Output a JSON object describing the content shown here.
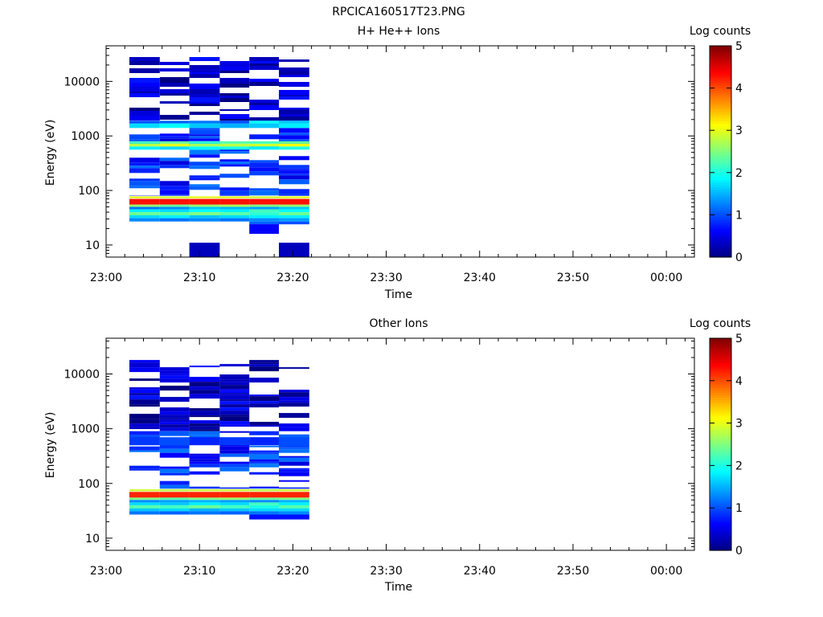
{
  "figure_title": "RPCICA160517T23.PNG",
  "colorbar": {
    "label": "Log counts",
    "ticks": [
      "0",
      "1",
      "2",
      "3",
      "4",
      "5"
    ],
    "range": [
      0,
      5
    ],
    "colormap": "jet"
  },
  "x_axis": {
    "label": "Time",
    "ticks": [
      "23:00",
      "23:10",
      "23:20",
      "23:30",
      "23:40",
      "23:50",
      "00:00"
    ],
    "range": [
      "23:00",
      "00:03"
    ]
  },
  "y_axis": {
    "label": "Energy (eV)",
    "ticks": [
      "10",
      "100",
      "1000",
      "10000"
    ],
    "scale": "log",
    "range": [
      6,
      45000
    ]
  },
  "chart_data": [
    {
      "type": "heatmap",
      "title": "H+ He++ Ions",
      "xlabel": "Time",
      "ylabel": "Energy (eV)",
      "colorbar_label": "Log counts",
      "yscale": "log",
      "time_bins": [
        {
          "start": "23:02:30",
          "end": "23:05:45"
        },
        {
          "start": "23:05:45",
          "end": "23:08:55"
        },
        {
          "start": "23:08:55",
          "end": "23:12:10"
        },
        {
          "start": "23:12:10",
          "end": "23:15:20"
        },
        {
          "start": "23:15:20",
          "end": "23:18:30"
        },
        {
          "start": "23:18:30",
          "end": "23:21:45"
        }
      ],
      "bands": [
        {
          "e_lo": 55,
          "e_hi": 70,
          "log_counts": [
            4.3,
            4.3,
            4.3,
            4.3,
            4.3,
            4.3
          ]
        },
        {
          "e_lo": 72,
          "e_hi": 78,
          "log_counts": [
            3.0,
            2.9,
            3.0,
            3.0,
            2.9,
            3.0
          ]
        },
        {
          "e_lo": 50,
          "e_hi": 55,
          "log_counts": [
            2.6,
            2.4,
            2.6,
            2.7,
            2.5,
            2.6
          ]
        },
        {
          "e_lo": 45,
          "e_hi": 50,
          "log_counts": [
            1.2,
            1.3,
            1.6,
            1.5,
            1.4,
            1.6
          ]
        },
        {
          "e_lo": 40,
          "e_hi": 45,
          "log_counts": [
            1.8,
            1.7,
            1.9,
            1.8,
            2.2,
            1.9
          ]
        },
        {
          "e_lo": 35,
          "e_hi": 40,
          "log_counts": [
            2.4,
            2.3,
            2.5,
            2.3,
            2.1,
            2.4
          ]
        },
        {
          "e_lo": 31,
          "e_hi": 35,
          "log_counts": [
            1.7,
            1.8,
            1.6,
            1.7,
            1.8,
            1.8
          ]
        },
        {
          "e_lo": 27,
          "e_hi": 31,
          "log_counts": [
            1.3,
            1.2,
            1.3,
            1.2,
            1.3,
            1.4
          ]
        },
        {
          "e_lo": 24,
          "e_hi": 27,
          "log_counts": [
            null,
            null,
            null,
            null,
            1.1,
            1.0
          ]
        },
        {
          "e_lo": 16,
          "e_hi": 24,
          "log_counts": [
            null,
            null,
            null,
            null,
            0.6,
            null
          ]
        },
        {
          "e_lo": 6,
          "e_hi": 11,
          "log_counts": [
            null,
            null,
            0.3,
            null,
            null,
            0.3
          ]
        },
        {
          "e_lo": 640,
          "e_hi": 720,
          "log_counts": [
            2.8,
            3.0,
            2.7,
            2.8,
            2.9,
            3.1
          ]
        },
        {
          "e_lo": 720,
          "e_hi": 800,
          "log_counts": [
            2.2,
            2.4,
            2.1,
            2.3,
            2.2,
            2.4
          ]
        },
        {
          "e_lo": 560,
          "e_hi": 640,
          "log_counts": [
            1.8,
            1.7,
            1.9,
            2.0,
            1.8,
            2.0
          ]
        },
        {
          "e_lo": 1400,
          "e_hi": 1700,
          "log_counts": [
            1.7,
            1.9,
            1.6,
            1.5,
            1.6,
            1.8
          ]
        },
        {
          "e_lo": 1700,
          "e_hi": 1900,
          "log_counts": [
            1.0,
            1.1,
            1.2,
            1.0,
            1.9,
            1.6
          ]
        }
      ],
      "background": [
        {
          "e_lo": 80,
          "e_hi": 1400,
          "log_counts": [
            0.8,
            0.8,
            0.8,
            0.8,
            0.8,
            0.8
          ]
        },
        {
          "e_lo": 1900,
          "e_hi": 28000,
          "log_counts": [
            0.3,
            0.3,
            0.3,
            0.3,
            0.3,
            0.3
          ]
        }
      ]
    },
    {
      "type": "heatmap",
      "title": "Other Ions",
      "xlabel": "Time",
      "ylabel": "Energy (eV)",
      "colorbar_label": "Log counts",
      "yscale": "log",
      "time_bins": [
        {
          "start": "23:02:30",
          "end": "23:05:45"
        },
        {
          "start": "23:05:45",
          "end": "23:08:55"
        },
        {
          "start": "23:08:55",
          "end": "23:12:10"
        },
        {
          "start": "23:12:10",
          "end": "23:15:20"
        },
        {
          "start": "23:15:20",
          "end": "23:18:30"
        },
        {
          "start": "23:18:30",
          "end": "23:21:45"
        }
      ],
      "bands": [
        {
          "e_lo": 55,
          "e_hi": 70,
          "log_counts": [
            4.2,
            4.2,
            4.2,
            4.2,
            4.2,
            4.2
          ]
        },
        {
          "e_lo": 72,
          "e_hi": 78,
          "log_counts": [
            2.9,
            2.8,
            2.9,
            2.9,
            2.8,
            2.9
          ]
        },
        {
          "e_lo": 50,
          "e_hi": 55,
          "log_counts": [
            2.5,
            2.3,
            2.5,
            2.6,
            2.4,
            2.5
          ]
        },
        {
          "e_lo": 45,
          "e_hi": 50,
          "log_counts": [
            1.3,
            1.4,
            1.5,
            1.4,
            1.3,
            1.5
          ]
        },
        {
          "e_lo": 40,
          "e_hi": 45,
          "log_counts": [
            1.7,
            1.6,
            1.8,
            1.7,
            2.2,
            1.8
          ]
        },
        {
          "e_lo": 35,
          "e_hi": 40,
          "log_counts": [
            2.3,
            2.2,
            2.4,
            2.2,
            2.0,
            2.3
          ]
        },
        {
          "e_lo": 31,
          "e_hi": 35,
          "log_counts": [
            1.6,
            1.7,
            1.5,
            1.6,
            1.7,
            1.7
          ]
        },
        {
          "e_lo": 27,
          "e_hi": 31,
          "log_counts": [
            1.2,
            1.1,
            1.2,
            1.1,
            1.2,
            1.3
          ]
        },
        {
          "e_lo": 22,
          "e_hi": 27,
          "log_counts": [
            null,
            null,
            null,
            null,
            0.7,
            0.7
          ]
        },
        {
          "e_lo": 500,
          "e_hi": 700,
          "log_counts": [
            0.9,
            1.0,
            0.8,
            0.9,
            0.8,
            1.0
          ]
        }
      ],
      "background": [
        {
          "e_lo": 80,
          "e_hi": 900,
          "log_counts": [
            0.8,
            0.8,
            0.8,
            0.8,
            0.8,
            0.8
          ]
        },
        {
          "e_lo": 900,
          "e_hi": 18000,
          "log_counts": [
            0.3,
            0.3,
            0.3,
            0.3,
            0.3,
            0.3
          ]
        }
      ]
    }
  ]
}
